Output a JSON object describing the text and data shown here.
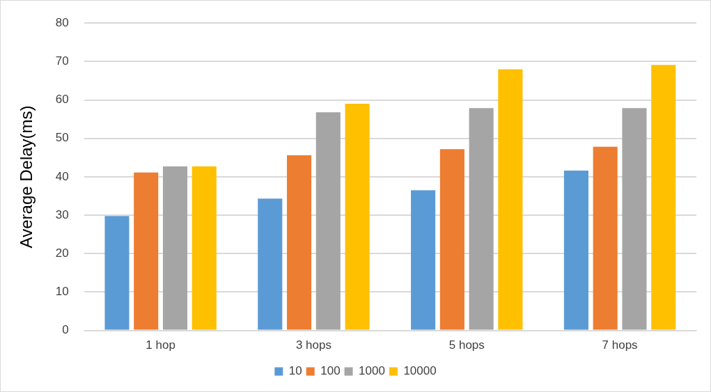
{
  "chart_data": {
    "type": "bar",
    "ylabel": "Average Delay(ms)",
    "categories": [
      "1 hop",
      "3 hops",
      "5 hops",
      "7 hops"
    ],
    "series": [
      {
        "name": "10",
        "color": "#5b9bd5",
        "values": [
          29.8,
          34.3,
          36.5,
          41.6
        ]
      },
      {
        "name": "100",
        "color": "#ed7d31",
        "values": [
          41.1,
          45.6,
          47.2,
          47.8
        ]
      },
      {
        "name": "1000",
        "color": "#a5a5a5",
        "values": [
          42.7,
          56.8,
          57.9,
          57.9
        ]
      },
      {
        "name": "10000",
        "color": "#ffc000",
        "values": [
          42.7,
          59,
          68,
          69.1
        ]
      }
    ],
    "ylim": [
      0,
      80
    ],
    "yticks": [
      0,
      10,
      20,
      30,
      40,
      50,
      60,
      70,
      80
    ],
    "grid": "y",
    "legend": "bottom"
  }
}
